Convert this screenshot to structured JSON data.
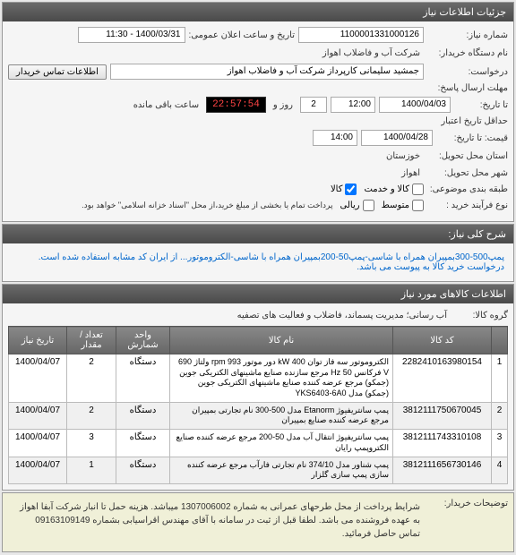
{
  "info_panel": {
    "title": "جزئیات اطلاعات نیاز",
    "need_no_label": "شماره نیاز:",
    "need_no": "1100001331000126",
    "announce_label": "تاریخ و ساعت اعلان عمومی:",
    "announce_value": "1400/03/31 - 11:30",
    "buyer_label": "نام دستگاه خریدار:",
    "buyer": "شرکت آب و فاضلاب اهواز",
    "requester_label": "درخواست:",
    "requester": "جمشید سلیمانی کارپرداز شرکت آب و فاضلاب اهواز",
    "contact_btn": "اطلاعات تماس خریدار",
    "deadline_label": "مهلت ارسال پاسخ:",
    "deadline_to": "تا تاریخ:",
    "deadline_date": "1400/04/03",
    "deadline_time": "12:00",
    "days_left": "2",
    "days_label": "روز و",
    "timer": "22:57:54",
    "timer_label": "ساعت باقی مانده",
    "validity_label": "حداقل تاریخ اعتبار",
    "validity_to": "قیمت: تا تاریخ:",
    "validity_date": "1400/04/28",
    "validity_time": "14:00",
    "province_label": "استان محل تحویل:",
    "province": "خوزستان",
    "city_label": "شهر محل تحویل:",
    "city": "اهواز",
    "budget_label": "طبقه بندی موضوعی:",
    "budget_cb1": "متوسط",
    "budget_cb2": "ریالی",
    "budget_cb3": "کالا",
    "budget_cb4": "کالا و خدمت",
    "process_label": "نوع فرآیند خرید :",
    "process_note": "پرداخت تمام یا بخشی از مبلغ خرید،از محل \"اسناد خزانه اسلامی\" خواهد بود."
  },
  "need_title": {
    "title": "شرح کلی نیاز:",
    "text": "پمپ500-300بمپیران همراه با شاسی-پمپ50-200بمپیران همراه با شاسی-الکتروموتور... از ایران کد مشابه استفاده شده است. درخواست خرید کالا به پیوست می باشد."
  },
  "items_panel": {
    "title": "اطلاعات کالاهای مورد نیاز",
    "group_label": "گروه کالا:",
    "group": "آب رسانی؛ مدیریت پسماند، فاضلاب و فعالیت های تصفیه",
    "columns": {
      "idx": "",
      "code": "کد کالا",
      "name": "نام کالا",
      "unit": "واحد شمارش",
      "qty": "تعداد / مقدار",
      "date": "تاریخ نیاز"
    },
    "rows": [
      {
        "idx": "1",
        "code": "2282410163980154",
        "name": "الکتروموتور سه فاز توان 400 kW دور موتور 993 rpm ولتاژ 690 V فرکانس 50 Hz مرجع سازنده صنایع ماشینهای الکتریکی جوین (جمکو) مرجع عرضه کننده صنایع ماشینهای الکتریکی جوین (جمکو) مدل YKS6403-6A0",
        "unit": "دستگاه",
        "qty": "2",
        "date": "1400/04/07"
      },
      {
        "idx": "2",
        "code": "3812111750670045",
        "name": "پمپ سانتریفیوژ Etanorm مدل 500-300 نام تجارتی بمپیران مرجع عرضه کننده صنایع بمپیران",
        "unit": "دستگاه",
        "qty": "2",
        "date": "1400/04/07"
      },
      {
        "idx": "3",
        "code": "3812111743310108",
        "name": "پمپ سانتریفیوژ انتقال آب مدل 50-200 مرجع عرضه کننده صنایع الکتروپمپ رایان",
        "unit": "دستگاه",
        "qty": "3",
        "date": "1400/04/07"
      },
      {
        "idx": "4",
        "code": "3812111656730146",
        "name": "پمپ شناور مدل 374/10 نام تجارتی فارآب مرجع عرضه کننده سازی پمپ سازی گلزار",
        "unit": "دستگاه",
        "qty": "1",
        "date": "1400/04/07"
      }
    ]
  },
  "conditions": {
    "label": "توضیحات خریدار:",
    "text": "شرایط پرداخت از محل طرحهای عمرانی به شماره 1307006002 میباشد. هزینه حمل تا انبار شرکت آبفا اهواز به عهده فروشنده می باشد. لطفا قبل از ثبت در سامانه با آقای مهندس اقراسیابی بشماره 09163109149 تماس حاصل فرمائید."
  }
}
